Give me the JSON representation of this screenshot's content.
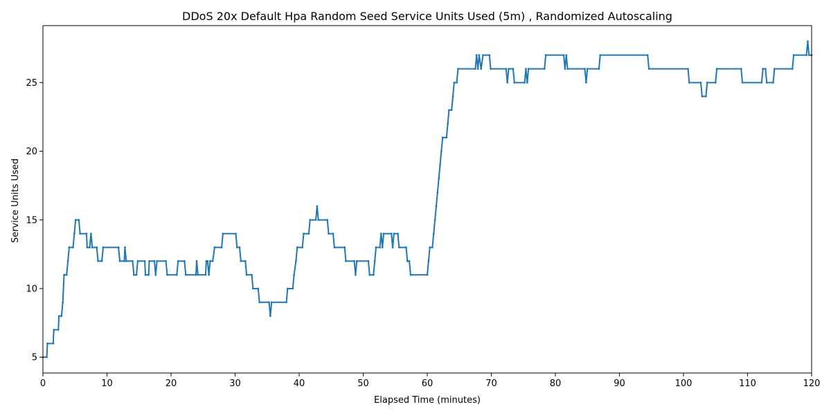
{
  "chart_data": {
    "type": "line",
    "title": "DDoS 20x Default Hpa Random Seed Service Units Used (5m) , Randomized Autoscaling",
    "xlabel": "Elapsed Time (minutes)",
    "ylabel": "Service Units Used",
    "xlim": [
      0,
      120
    ],
    "ylim": [
      3.85,
      29.15
    ],
    "xticks": [
      0,
      10,
      20,
      30,
      40,
      50,
      60,
      70,
      80,
      90,
      100,
      110,
      120
    ],
    "yticks": [
      5,
      10,
      15,
      20,
      25
    ],
    "grid": false,
    "line_color": "#1f77b4",
    "series": [
      {
        "points": [
          [
            0,
            5
          ],
          [
            0.6,
            5
          ],
          [
            0.7,
            6
          ],
          [
            1.6,
            6
          ],
          [
            1.7,
            7
          ],
          [
            2.4,
            7
          ],
          [
            2.5,
            8
          ],
          [
            2.9,
            8
          ],
          [
            3.1,
            9
          ],
          [
            3.3,
            11
          ],
          [
            3.7,
            11
          ],
          [
            3.9,
            12
          ],
          [
            4.1,
            13
          ],
          [
            4.7,
            13
          ],
          [
            4.9,
            14
          ],
          [
            5.1,
            15
          ],
          [
            5.6,
            15
          ],
          [
            5.8,
            14
          ],
          [
            6.8,
            14
          ],
          [
            6.9,
            13
          ],
          [
            7.3,
            13
          ],
          [
            7.5,
            14
          ],
          [
            7.7,
            13
          ],
          [
            8.4,
            13
          ],
          [
            8.6,
            12
          ],
          [
            9.2,
            12
          ],
          [
            9.4,
            13
          ],
          [
            11.8,
            13
          ],
          [
            12.0,
            12
          ],
          [
            12.7,
            12
          ],
          [
            12.8,
            13
          ],
          [
            13.0,
            12
          ],
          [
            14.0,
            12
          ],
          [
            14.2,
            11
          ],
          [
            14.6,
            11
          ],
          [
            14.8,
            12
          ],
          [
            15.9,
            12
          ],
          [
            16.0,
            11
          ],
          [
            16.5,
            11
          ],
          [
            16.6,
            12
          ],
          [
            17.4,
            12
          ],
          [
            17.6,
            11
          ],
          [
            17.8,
            12
          ],
          [
            19.2,
            12
          ],
          [
            19.4,
            11
          ],
          [
            20.9,
            11
          ],
          [
            21.1,
            12
          ],
          [
            22.1,
            12
          ],
          [
            22.3,
            11
          ],
          [
            23.9,
            11
          ],
          [
            24.0,
            12
          ],
          [
            24.2,
            11
          ],
          [
            25.4,
            11
          ],
          [
            25.5,
            12
          ],
          [
            25.7,
            12
          ],
          [
            25.9,
            11
          ],
          [
            26.1,
            12
          ],
          [
            26.5,
            12
          ],
          [
            26.8,
            13
          ],
          [
            27.9,
            13
          ],
          [
            28.1,
            14
          ],
          [
            30.1,
            14
          ],
          [
            30.3,
            13
          ],
          [
            30.7,
            13
          ],
          [
            30.9,
            12
          ],
          [
            31.6,
            12
          ],
          [
            31.8,
            11
          ],
          [
            32.6,
            11
          ],
          [
            32.8,
            10
          ],
          [
            33.6,
            10
          ],
          [
            33.8,
            9
          ],
          [
            35.3,
            9
          ],
          [
            35.5,
            8
          ],
          [
            35.7,
            9
          ],
          [
            38.0,
            9
          ],
          [
            38.2,
            10
          ],
          [
            39.0,
            10
          ],
          [
            39.2,
            11
          ],
          [
            39.5,
            12
          ],
          [
            39.7,
            13
          ],
          [
            40.5,
            13
          ],
          [
            40.7,
            14
          ],
          [
            41.5,
            14
          ],
          [
            41.7,
            15
          ],
          [
            42.6,
            15
          ],
          [
            42.8,
            16
          ],
          [
            43.0,
            15
          ],
          [
            44.4,
            15
          ],
          [
            44.6,
            14
          ],
          [
            45.3,
            14
          ],
          [
            45.5,
            13
          ],
          [
            47.1,
            13
          ],
          [
            47.3,
            12
          ],
          [
            48.6,
            12
          ],
          [
            48.8,
            11
          ],
          [
            49.0,
            12
          ],
          [
            50.8,
            12
          ],
          [
            51.0,
            11
          ],
          [
            51.6,
            11
          ],
          [
            51.8,
            12
          ],
          [
            52.0,
            13
          ],
          [
            52.6,
            13
          ],
          [
            52.8,
            14
          ],
          [
            53.0,
            13
          ],
          [
            53.2,
            14
          ],
          [
            54.4,
            14
          ],
          [
            54.6,
            13
          ],
          [
            54.8,
            14
          ],
          [
            55.4,
            14
          ],
          [
            55.6,
            13
          ],
          [
            56.7,
            13
          ],
          [
            56.9,
            12
          ],
          [
            57.2,
            12
          ],
          [
            57.4,
            11
          ],
          [
            60.0,
            11
          ],
          [
            60.2,
            12
          ],
          [
            60.4,
            13
          ],
          [
            60.8,
            13
          ],
          [
            61.0,
            14
          ],
          [
            61.2,
            15
          ],
          [
            61.4,
            16
          ],
          [
            61.6,
            17
          ],
          [
            61.8,
            18
          ],
          [
            62.0,
            19
          ],
          [
            62.2,
            20
          ],
          [
            62.4,
            21
          ],
          [
            63.0,
            21
          ],
          [
            63.2,
            22
          ],
          [
            63.4,
            23
          ],
          [
            63.8,
            23
          ],
          [
            64.0,
            24
          ],
          [
            64.2,
            25
          ],
          [
            64.6,
            25
          ],
          [
            64.8,
            26
          ],
          [
            67.5,
            26
          ],
          [
            67.7,
            27
          ],
          [
            67.9,
            26
          ],
          [
            68.1,
            27
          ],
          [
            68.4,
            26
          ],
          [
            68.7,
            27
          ],
          [
            69.7,
            27
          ],
          [
            69.9,
            26
          ],
          [
            72.3,
            26
          ],
          [
            72.5,
            25
          ],
          [
            72.7,
            26
          ],
          [
            73.4,
            26
          ],
          [
            73.6,
            25
          ],
          [
            75.2,
            25
          ],
          [
            75.4,
            26
          ],
          [
            75.6,
            25
          ],
          [
            75.8,
            26
          ],
          [
            78.3,
            26
          ],
          [
            78.5,
            27
          ],
          [
            81.3,
            27
          ],
          [
            81.5,
            26
          ],
          [
            81.7,
            27
          ],
          [
            81.9,
            26
          ],
          [
            84.6,
            26
          ],
          [
            84.8,
            25
          ],
          [
            85.0,
            26
          ],
          [
            86.8,
            26
          ],
          [
            87.0,
            27
          ],
          [
            94.4,
            27
          ],
          [
            94.6,
            26
          ],
          [
            100.7,
            26
          ],
          [
            100.9,
            25
          ],
          [
            102.7,
            25
          ],
          [
            102.9,
            24
          ],
          [
            103.5,
            24
          ],
          [
            103.7,
            25
          ],
          [
            105.0,
            25
          ],
          [
            105.2,
            26
          ],
          [
            109.0,
            26
          ],
          [
            109.2,
            25
          ],
          [
            112.2,
            25
          ],
          [
            112.4,
            26
          ],
          [
            112.8,
            26
          ],
          [
            113.0,
            25
          ],
          [
            114.0,
            25
          ],
          [
            114.2,
            26
          ],
          [
            117.0,
            26
          ],
          [
            117.2,
            27
          ],
          [
            119.2,
            27
          ],
          [
            119.4,
            28
          ],
          [
            119.6,
            27
          ],
          [
            120,
            27
          ]
        ]
      }
    ]
  }
}
